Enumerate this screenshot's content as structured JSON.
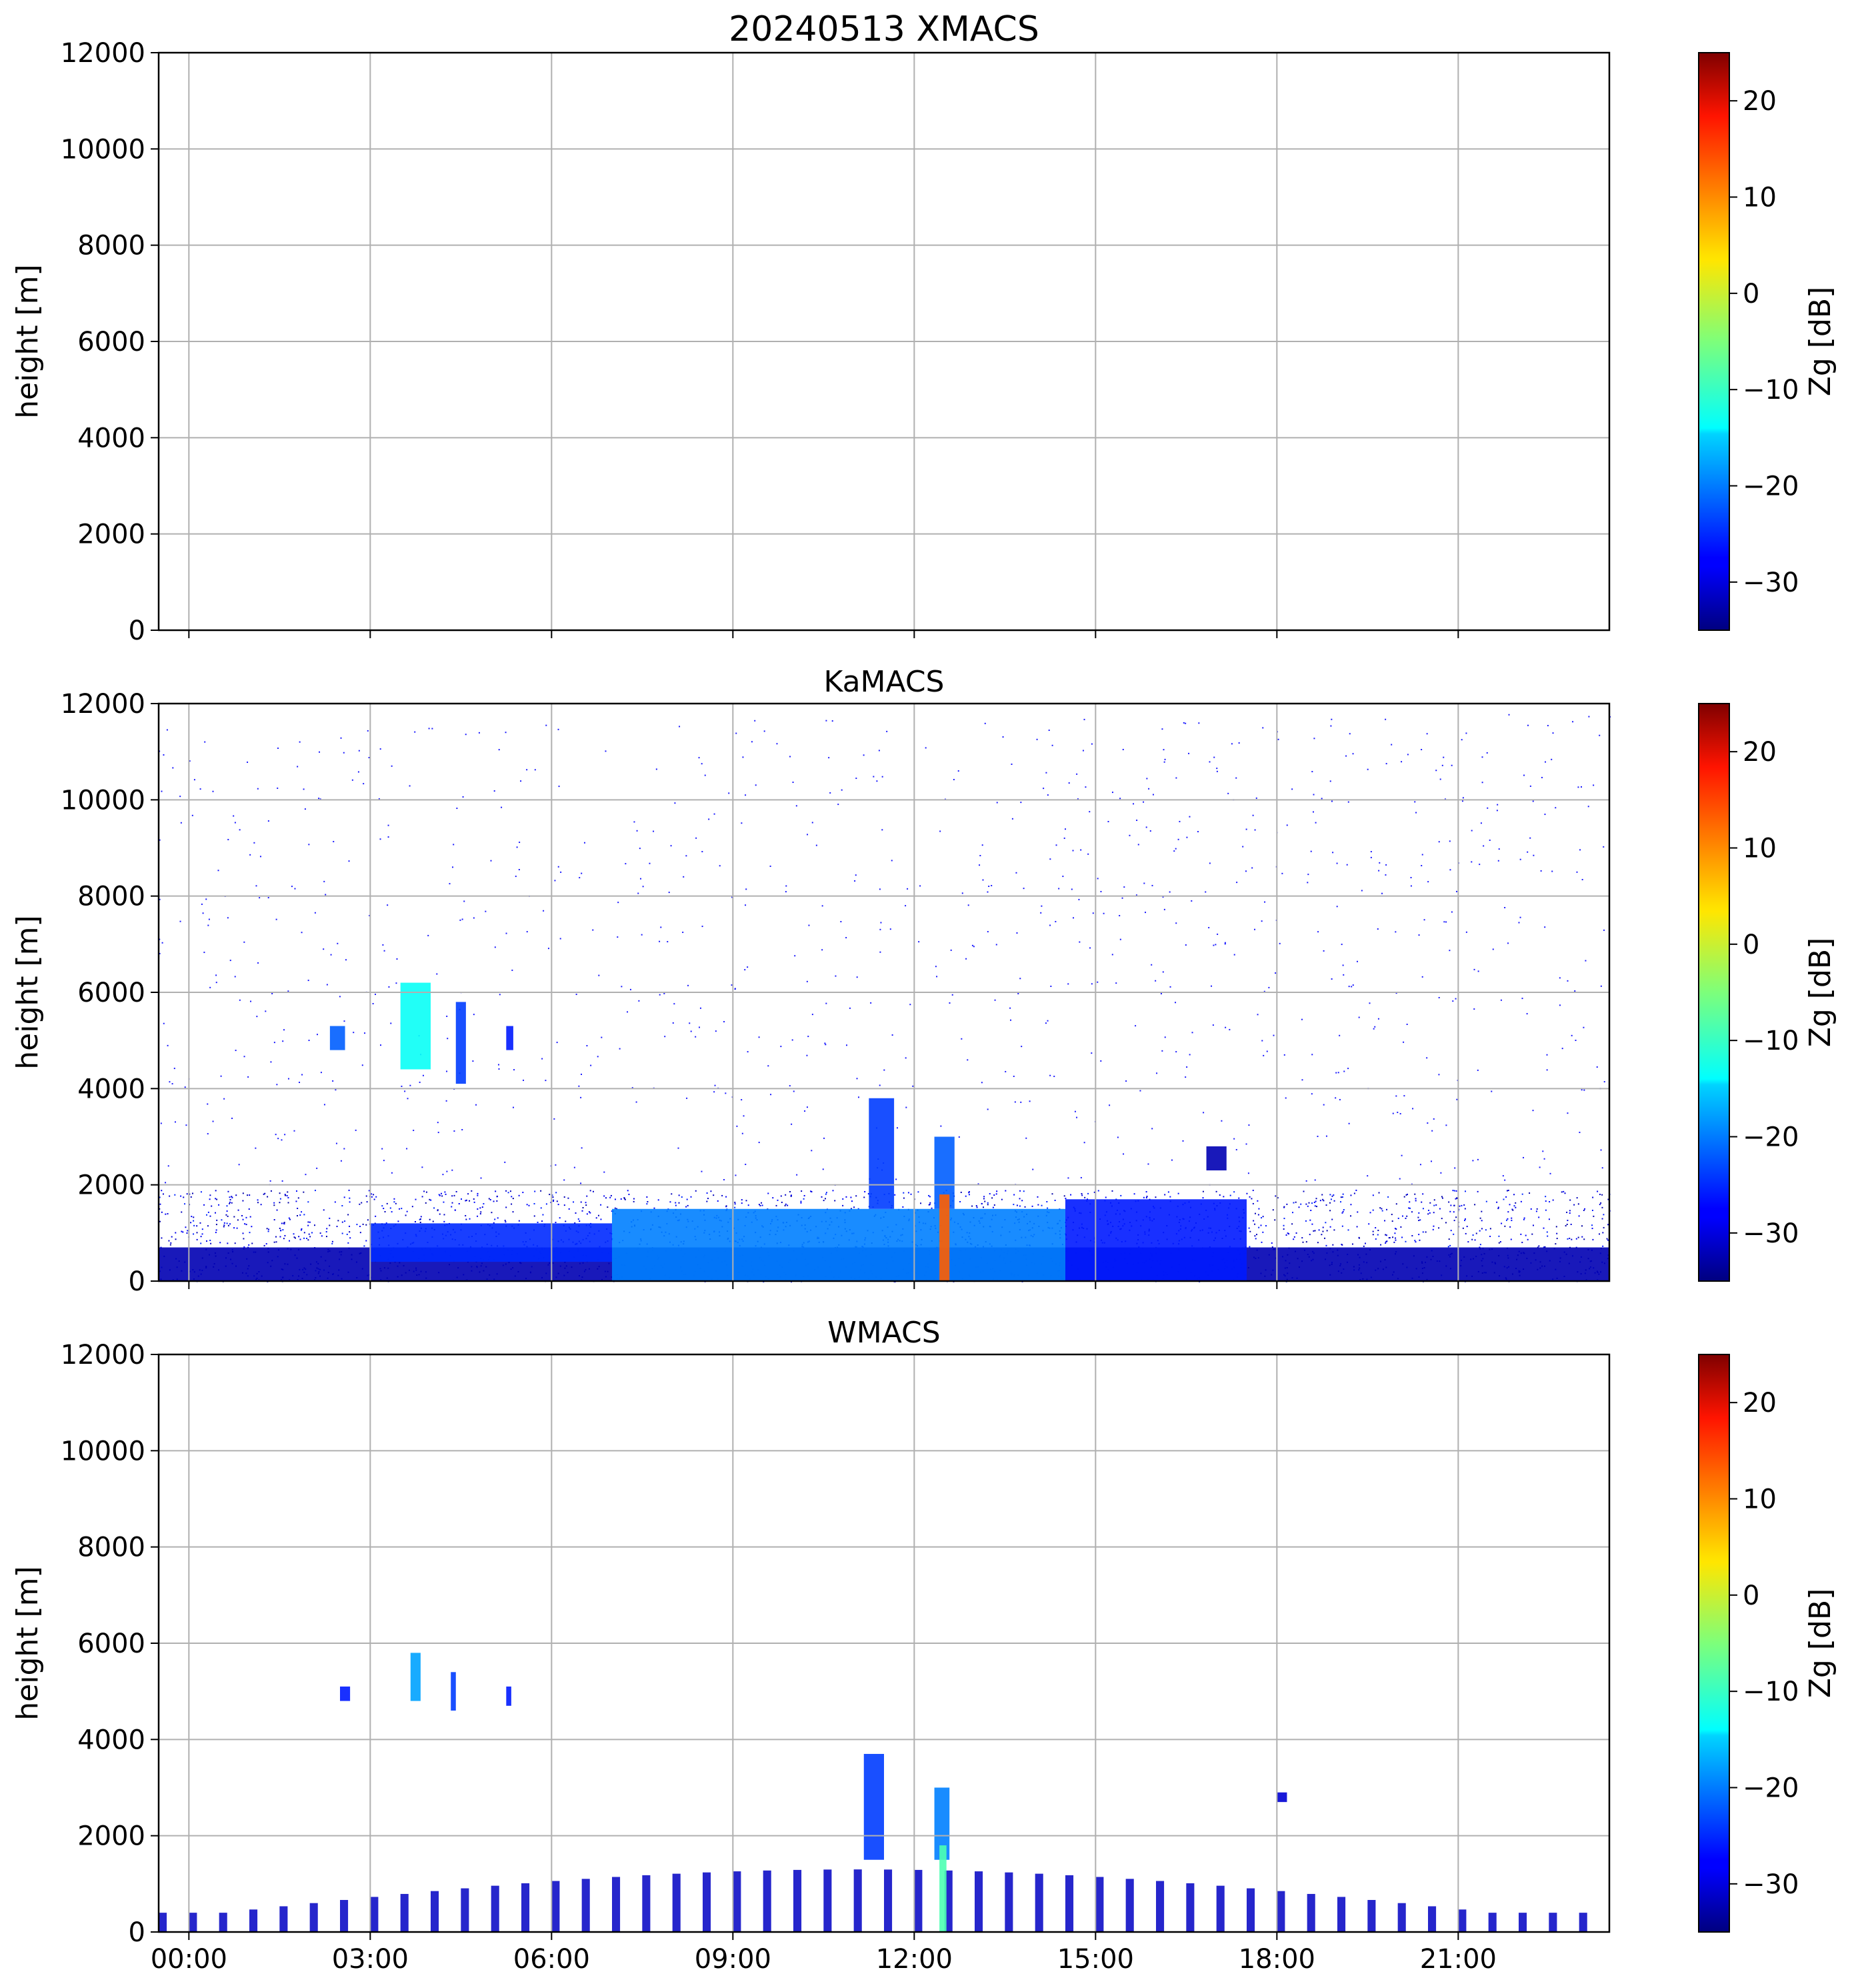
{
  "figure": {
    "colorbar_label": "Zg [dB]",
    "colorbar_ticks": [
      "20",
      "10",
      "0",
      "−10",
      "−20",
      "−30"
    ],
    "colormap": "jet",
    "colorbar_range": [
      -35,
      25
    ]
  },
  "chart_data": [
    {
      "type": "heatmap",
      "title": "20240513 XMACS",
      "ylabel": "height [m]",
      "ylim": [
        0,
        12000
      ],
      "xlim": [
        "00:00",
        "24:00"
      ],
      "yticks": [
        "0",
        "2000",
        "4000",
        "6000",
        "8000",
        "10000",
        "12000"
      ],
      "xticks": [],
      "grid": true,
      "colorbar": "Zg [dB]",
      "echoes": []
    },
    {
      "type": "heatmap",
      "title": "KaMACS",
      "ylabel": "height [m]",
      "ylim": [
        0,
        12000
      ],
      "xlim": [
        "00:00",
        "24:00"
      ],
      "yticks": [
        "0",
        "2000",
        "4000",
        "6000",
        "8000",
        "10000",
        "12000"
      ],
      "xticks": [],
      "grid": true,
      "colorbar": "Zg [dB]",
      "echoes": [
        {
          "t0": "00:00",
          "t1": "24:00",
          "h0": 0,
          "h1": 700,
          "zg": -32
        },
        {
          "t0": "03:30",
          "t1": "07:30",
          "h0": 400,
          "h1": 1200,
          "zg": -25
        },
        {
          "t0": "07:30",
          "t1": "15:00",
          "h0": 0,
          "h1": 1500,
          "zg": -20
        },
        {
          "t0": "15:00",
          "t1": "18:00",
          "h0": 0,
          "h1": 1700,
          "zg": -26
        },
        {
          "t0": "11:45",
          "t1": "12:10",
          "h0": 1500,
          "h1": 3800,
          "zg": -24
        },
        {
          "t0": "12:50",
          "t1": "13:10",
          "h0": 1500,
          "h1": 3000,
          "zg": -22
        },
        {
          "t0": "12:55",
          "t1": "13:05",
          "h0": 0,
          "h1": 1800,
          "zg": 12
        },
        {
          "t0": "17:20",
          "t1": "17:40",
          "h0": 2300,
          "h1": 2800,
          "zg": -32
        },
        {
          "t0": "02:50",
          "t1": "03:05",
          "h0": 4800,
          "h1": 5300,
          "zg": -22
        },
        {
          "t0": "04:00",
          "t1": "04:30",
          "h0": 4400,
          "h1": 6200,
          "zg": -12
        },
        {
          "t0": "04:55",
          "t1": "05:05",
          "h0": 4100,
          "h1": 5800,
          "zg": -24
        },
        {
          "t0": "05:45",
          "t1": "05:52",
          "h0": 4800,
          "h1": 5300,
          "zg": -26
        }
      ]
    },
    {
      "type": "heatmap",
      "title": "WMACS",
      "ylabel": "height [m]",
      "ylim": [
        0,
        12000
      ],
      "xlim": [
        "00:00",
        "24:00"
      ],
      "yticks": [
        "0",
        "2000",
        "4000",
        "6000",
        "8000",
        "10000",
        "12000"
      ],
      "xticks": [
        "00:00",
        "03:00",
        "06:00",
        "09:00",
        "12:00",
        "15:00",
        "18:00",
        "21:00"
      ],
      "grid": true,
      "colorbar": "Zg [dB]",
      "echoes": [
        {
          "t0": "03:00",
          "t1": "03:10",
          "h0": 4800,
          "h1": 5100,
          "zg": -26
        },
        {
          "t0": "04:10",
          "t1": "04:20",
          "h0": 4800,
          "h1": 5800,
          "zg": -18
        },
        {
          "t0": "04:50",
          "t1": "04:55",
          "h0": 4600,
          "h1": 5400,
          "zg": -24
        },
        {
          "t0": "05:45",
          "t1": "05:50",
          "h0": 4700,
          "h1": 5100,
          "zg": -26
        },
        {
          "t0": "11:40",
          "t1": "12:00",
          "h0": 1500,
          "h1": 3700,
          "zg": -24
        },
        {
          "t0": "12:50",
          "t1": "13:05",
          "h0": 1500,
          "h1": 3000,
          "zg": -20
        },
        {
          "t0": "12:55",
          "t1": "13:02",
          "h0": 0,
          "h1": 1800,
          "zg": -8
        },
        {
          "t0": "18:30",
          "t1": "18:40",
          "h0": 2700,
          "h1": 2900,
          "zg": -30
        }
      ],
      "column_strip": {
        "t0": "00:00",
        "t1": "23:30",
        "period_min": 30,
        "width_min": 8
      }
    }
  ]
}
